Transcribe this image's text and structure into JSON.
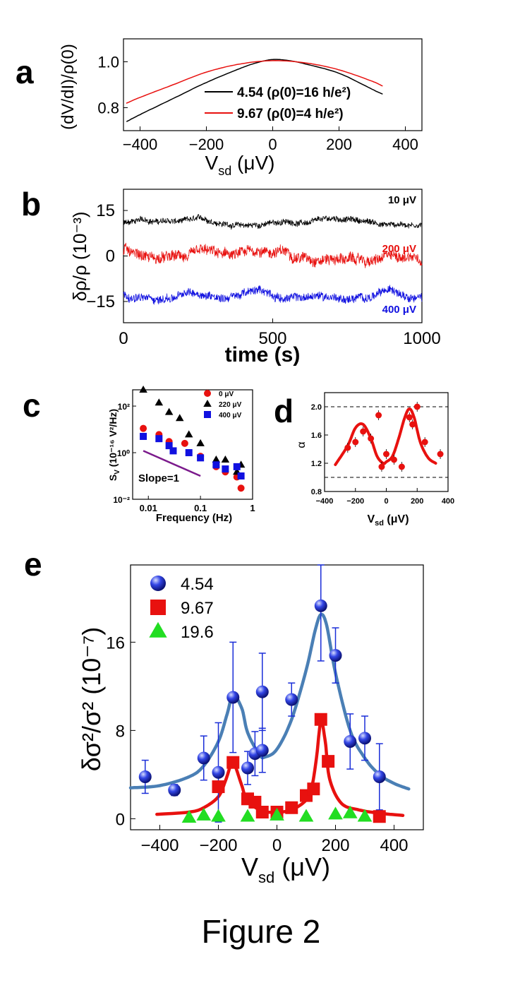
{
  "figure_caption": "Figure 2",
  "panel_letters": [
    "a",
    "b",
    "c",
    "d",
    "e"
  ],
  "colors": {
    "black": "#000000",
    "red": "#e8110f",
    "blue": "#1010e0",
    "steel": "#4a7fb5",
    "green": "#22dd22",
    "purple": "#7b1a8c"
  },
  "chart_data": [
    {
      "panel": "a",
      "type": "line",
      "ylabel": "(dV/dI)/ρ(0)",
      "xlabel": "V",
      "xlabel_sub": "sd",
      "xunit": "(μV)",
      "xlim": [
        -450,
        450
      ],
      "ylim": [
        0.7,
        1.1
      ],
      "xticks": [
        -400,
        -200,
        0,
        200,
        400
      ],
      "yticks": [
        0.8,
        1.0
      ],
      "series": [
        {
          "name": "4.54 (ρ(0)=16 h/e²)",
          "color": "#000000",
          "x": [
            -440,
            -400,
            -300,
            -200,
            -100,
            -50,
            0,
            50,
            100,
            200,
            300,
            330
          ],
          "y": [
            0.74,
            0.77,
            0.84,
            0.91,
            0.97,
            0.995,
            1.01,
            1.005,
            0.99,
            0.95,
            0.88,
            0.86
          ]
        },
        {
          "name": "9.67 (ρ(0)=4 h/e²)",
          "color": "#e8110f",
          "x": [
            -440,
            -400,
            -300,
            -200,
            -100,
            0,
            100,
            200,
            300,
            330
          ],
          "y": [
            0.82,
            0.845,
            0.9,
            0.955,
            0.99,
            1.005,
            0.995,
            0.965,
            0.915,
            0.895
          ]
        }
      ]
    },
    {
      "panel": "b",
      "type": "line",
      "ylabel": "δρ/ρ (10⁻³)",
      "xlabel": "time (s)",
      "xlim": [
        0,
        1000
      ],
      "ylim": [
        -22,
        22
      ],
      "xticks": [
        0,
        500,
        1000
      ],
      "yticks": [
        -15,
        0,
        15
      ],
      "series": [
        {
          "name": "10 μV",
          "color": "#000000",
          "offset": 11,
          "amplitude": 1.6
        },
        {
          "name": "200 μV",
          "color": "#e8110f",
          "offset": 0,
          "amplitude": 3.0
        },
        {
          "name": "400 μV",
          "color": "#1010e0",
          "offset": -13,
          "amplitude": 2.3
        }
      ]
    },
    {
      "panel": "c",
      "type": "scatter",
      "ylabel": "S",
      "ylabel_sub": "V",
      "ylabel_rest": " (10⁻¹⁶ V²/Hz)",
      "xlabel": "Frequency (Hz)",
      "xscale": "log",
      "yscale": "log",
      "xlim": [
        0.005,
        1
      ],
      "ylim": [
        0.01,
        500
      ],
      "xticks": [
        0.01,
        0.1,
        1
      ],
      "yticks_labels": [
        "10⁻²",
        "10⁰",
        "10²"
      ],
      "annotation": "Slope=1",
      "series": [
        {
          "name": "0 μV",
          "color": "#e8110f",
          "marker": "circle",
          "x": [
            0.008,
            0.016,
            0.025,
            0.05,
            0.1,
            0.2,
            0.3,
            0.5,
            0.6
          ],
          "y": [
            11,
            6,
            3.0,
            2.5,
            0.7,
            0.25,
            0.15,
            0.09,
            0.03
          ]
        },
        {
          "name": "220 μV",
          "color": "#000000",
          "marker": "triangle",
          "x": [
            0.008,
            0.016,
            0.025,
            0.04,
            0.06,
            0.1,
            0.2,
            0.3,
            0.5,
            0.6
          ],
          "y": [
            500,
            140,
            55,
            30,
            6,
            2.5,
            0.5,
            0.5,
            0.15,
            0.3
          ]
        },
        {
          "name": "400 μV",
          "color": "#1010e0",
          "marker": "square",
          "x": [
            0.008,
            0.016,
            0.025,
            0.03,
            0.06,
            0.1,
            0.2,
            0.3,
            0.5,
            0.6
          ],
          "y": [
            5,
            4,
            2,
            1.2,
            1.0,
            0.6,
            0.3,
            0.2,
            0.25,
            0.1
          ]
        }
      ],
      "slope_line": {
        "color": "#7b1a8c",
        "x": [
          0.008,
          0.1
        ],
        "y": [
          1.2,
          0.1
        ]
      }
    },
    {
      "panel": "d",
      "type": "scatter",
      "ylabel": "α",
      "xlabel": "V",
      "xlabel_sub": "sd",
      "xunit": "(μV)",
      "xlim": [
        -400,
        400
      ],
      "ylim": [
        0.8,
        2.2
      ],
      "xticks": [
        -400,
        -200,
        0,
        200,
        400
      ],
      "yticks": [
        0.8,
        1.2,
        1.6,
        2.0
      ],
      "reference_lines": [
        1.0,
        2.0
      ],
      "series": [
        {
          "name": "",
          "color": "#e8110f",
          "marker": "circle",
          "x": [
            -250,
            -200,
            -150,
            -100,
            -50,
            -30,
            0,
            50,
            100,
            150,
            170,
            200,
            250,
            350
          ],
          "y": [
            1.42,
            1.5,
            1.65,
            1.55,
            1.88,
            1.15,
            1.33,
            1.25,
            1.15,
            1.85,
            1.75,
            2.0,
            1.5,
            1.33
          ]
        }
      ],
      "fit_curve": {
        "color": "#e8110f",
        "x": [
          -330,
          -250,
          -200,
          -150,
          -100,
          -60,
          -20,
          0,
          40,
          80,
          120,
          150,
          180,
          220,
          270,
          320
        ],
        "y": [
          1.18,
          1.45,
          1.7,
          1.75,
          1.55,
          1.3,
          1.2,
          1.22,
          1.3,
          1.55,
          1.85,
          1.97,
          1.85,
          1.5,
          1.28,
          1.2
        ]
      }
    },
    {
      "panel": "e",
      "type": "scatter",
      "ylabel": "δσ²/σ² (10⁻⁷)",
      "xlabel": "V",
      "xlabel_sub": "sd",
      "xunit": "(μV)",
      "xlim": [
        -500,
        500
      ],
      "ylim": [
        -1,
        23
      ],
      "xticks": [
        -400,
        -200,
        0,
        200,
        400
      ],
      "yticks": [
        0,
        8,
        16
      ],
      "series": [
        {
          "name": "4.54",
          "color": "#1a2ed8",
          "marker": "sphere",
          "x": [
            -450,
            -350,
            -250,
            -200,
            -150,
            -100,
            -75,
            -50,
            -50,
            50,
            150,
            200,
            250,
            300,
            350
          ],
          "y": [
            3.8,
            2.6,
            5.5,
            4.2,
            11.0,
            4.6,
            5.9,
            6.2,
            11.5,
            10.8,
            19.3,
            14.8,
            7.0,
            7.3,
            3.8
          ],
          "err": [
            1.5,
            0.5,
            2.0,
            4.5,
            5.0,
            1.5,
            2.0,
            2.0,
            3.5,
            1.5,
            5.0,
            2.5,
            2.5,
            2.0,
            3.0
          ]
        },
        {
          "name": "9.67",
          "color": "#e8110f",
          "marker": "square",
          "x": [
            -200,
            -150,
            -100,
            -75,
            -50,
            0,
            50,
            100,
            125,
            150,
            175,
            350
          ],
          "y": [
            2.9,
            5.1,
            1.8,
            1.5,
            0.6,
            0.6,
            1.0,
            2.1,
            2.7,
            9.0,
            5.2,
            0.2
          ]
        },
        {
          "name": "19.6",
          "color": "#22dd22",
          "marker": "triangle",
          "x": [
            -300,
            -250,
            -200,
            -100,
            0,
            100,
            200,
            250,
            300
          ],
          "y": [
            0.1,
            0.3,
            0.2,
            0.2,
            0.3,
            0.2,
            0.4,
            0.5,
            0.2
          ]
        }
      ],
      "fit_curves": [
        {
          "color": "#4a7fb5",
          "x": [
            -500,
            -400,
            -300,
            -250,
            -200,
            -170,
            -150,
            -120,
            -100,
            -60,
            -40,
            0,
            50,
            100,
            130,
            150,
            170,
            200,
            250,
            300,
            350,
            400,
            450
          ],
          "y": [
            2.8,
            3.0,
            3.8,
            4.8,
            7.0,
            9.5,
            11.2,
            10.0,
            7.8,
            5.8,
            5.6,
            6.3,
            9.0,
            13.5,
            17.0,
            18.5,
            17.5,
            13.2,
            8.0,
            5.5,
            4.0,
            3.2,
            2.7
          ]
        },
        {
          "color": "#e8110f",
          "x": [
            -410,
            -300,
            -250,
            -200,
            -175,
            -160,
            -150,
            -140,
            -120,
            -100,
            -50,
            0,
            50,
            100,
            120,
            135,
            150,
            165,
            180,
            220,
            280,
            350,
            430
          ],
          "y": [
            0.4,
            0.6,
            1.0,
            2.0,
            3.5,
            4.7,
            5.1,
            4.6,
            3.0,
            1.6,
            0.7,
            0.6,
            0.8,
            1.7,
            3.0,
            5.5,
            8.8,
            7.0,
            3.6,
            1.4,
            0.8,
            0.5,
            0.3
          ]
        }
      ]
    }
  ]
}
